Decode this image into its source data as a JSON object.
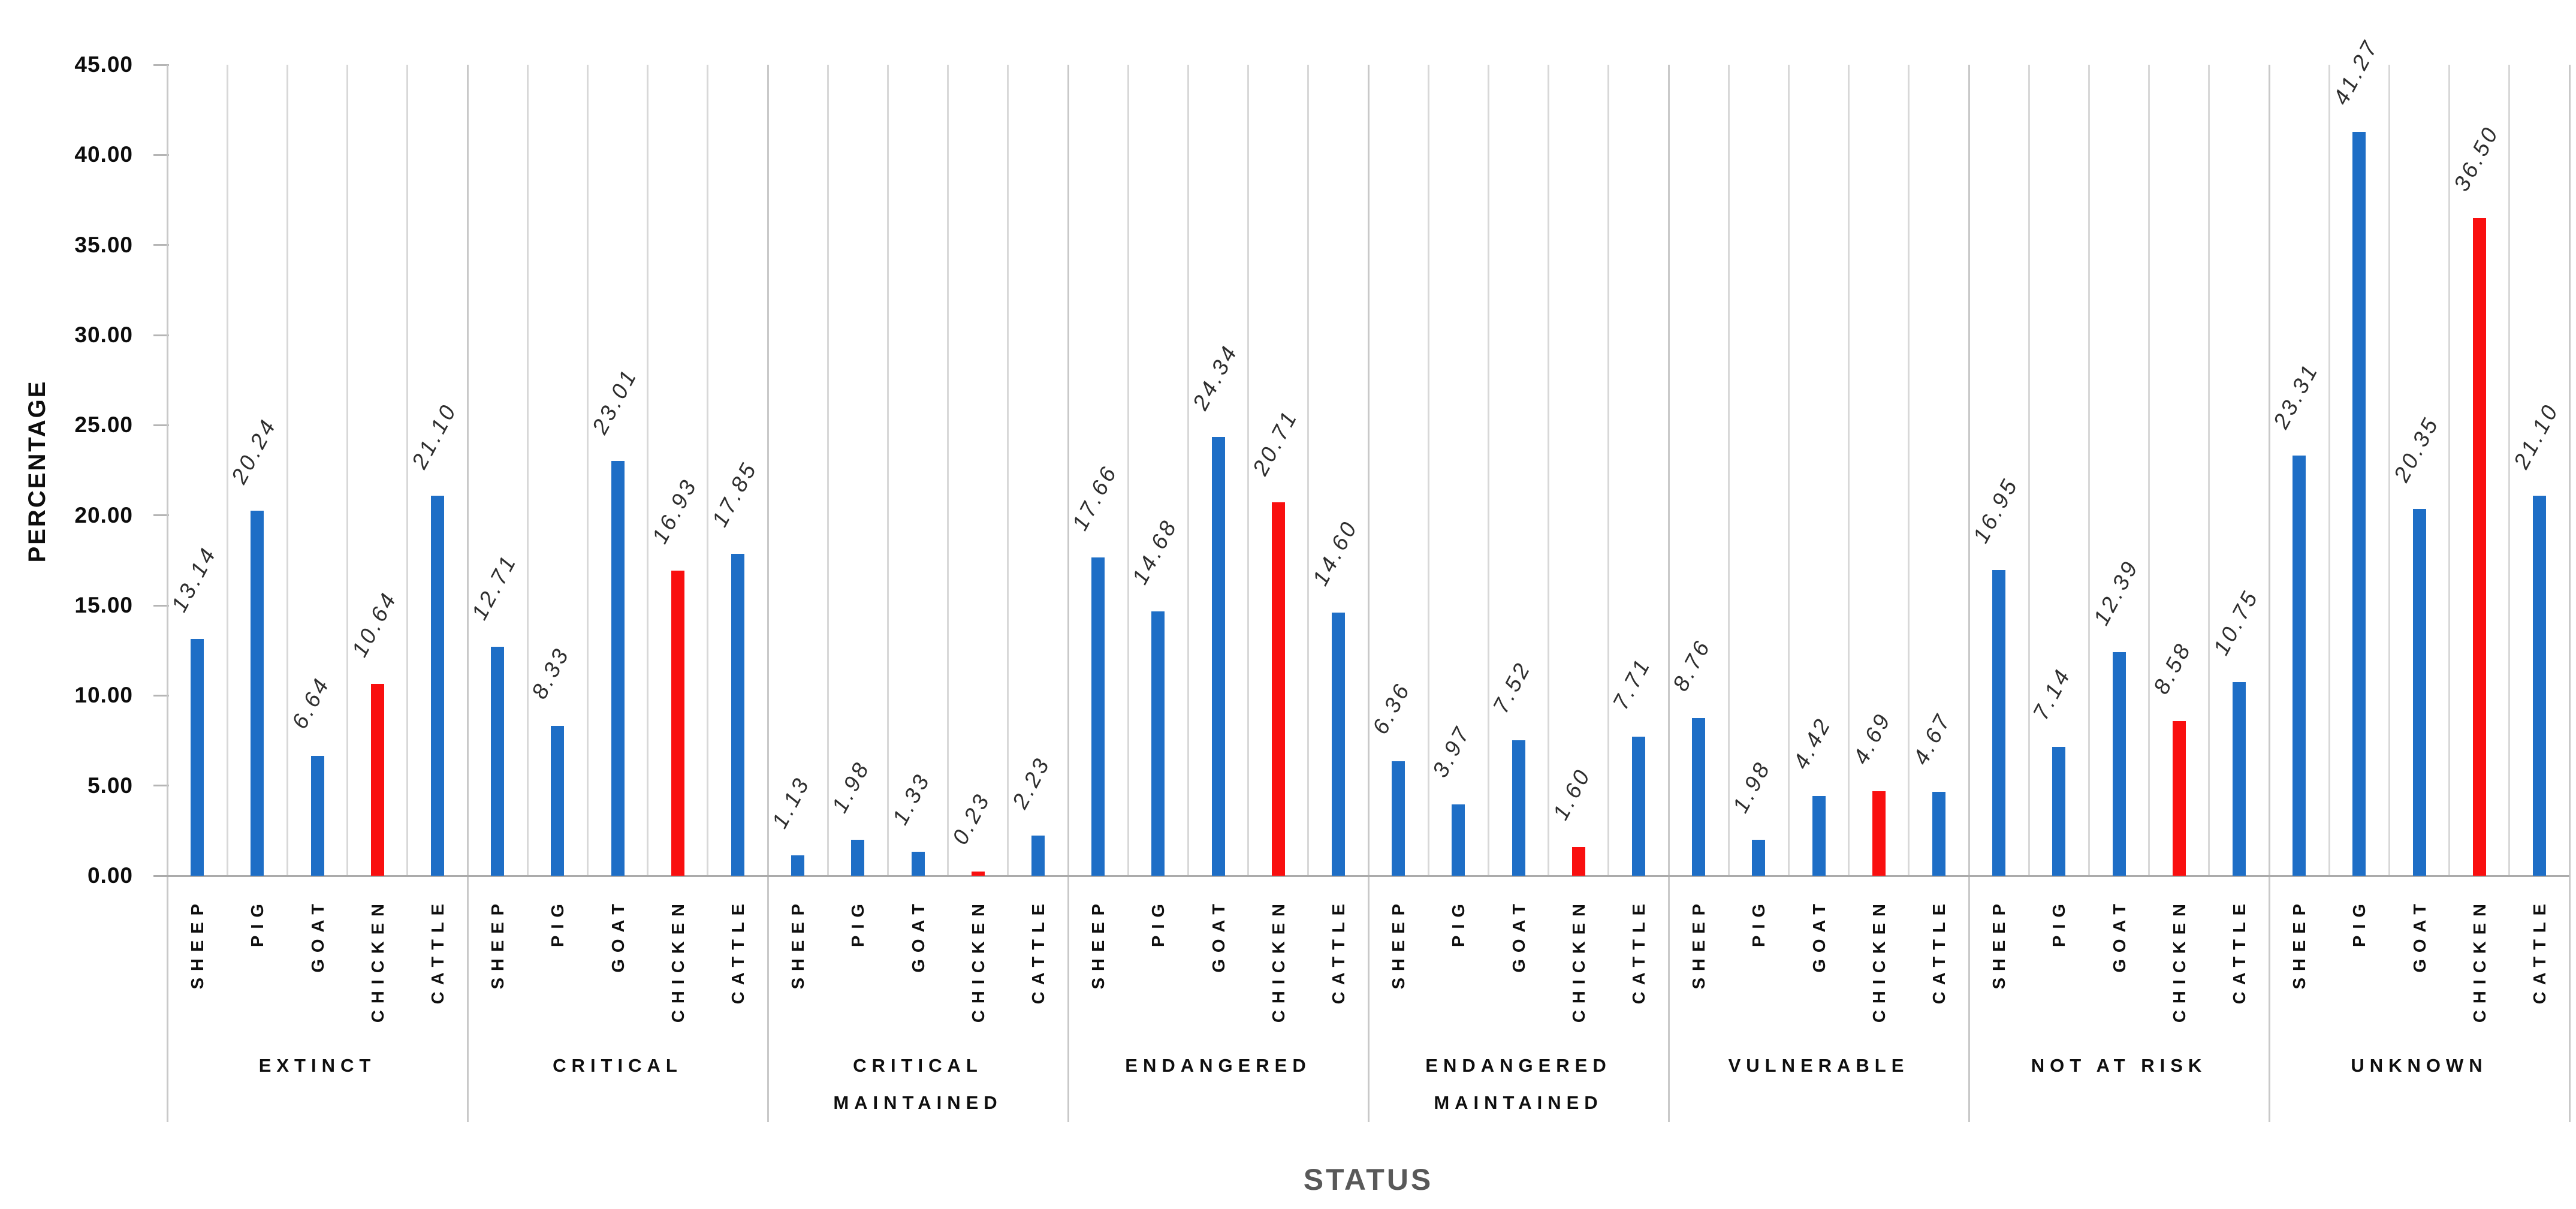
{
  "chart_data": {
    "type": "bar",
    "title": "",
    "xlabel": "STATUS",
    "ylabel": "PERCENTAGE",
    "ylim": [
      0,
      45
    ],
    "ytick_step": 5,
    "yticks": [
      "0.00",
      "5.00",
      "10.00",
      "15.00",
      "20.00",
      "25.00",
      "30.00",
      "35.00",
      "40.00",
      "45.00"
    ],
    "value_decimals": 2,
    "grid": "vertical-only",
    "legend": "none",
    "animals_per_group": [
      "SHEEP",
      "PIG",
      "GOAT",
      "CHICKEN",
      "CATTLE"
    ],
    "highlight_category": "CHICKEN",
    "colors": {
      "default_bar": "#1E6EC6",
      "highlight_bar": "#F90F0F",
      "column_gridline": "#D8D8D8",
      "group_separator": "#C9C9C9",
      "axis_line": "#ABABAB",
      "tick_mark": "#B5B5B5",
      "value_label_text": "#2E2E2E",
      "axis_text": "#0D0D0D",
      "xlabel_text": "#595959"
    },
    "groups": [
      {
        "label": "EXTINCT",
        "values": [
          13.14,
          20.24,
          6.64,
          10.64,
          21.1
        ]
      },
      {
        "label": "CRITICAL",
        "values": [
          12.71,
          8.33,
          23.01,
          16.93,
          17.85
        ]
      },
      {
        "label": "CRITICAL\nMAINTAINED",
        "values": [
          1.13,
          1.98,
          1.33,
          0.23,
          2.23
        ]
      },
      {
        "label": "ENDANGERED",
        "values": [
          17.66,
          14.68,
          24.34,
          20.71,
          14.6
        ]
      },
      {
        "label": "ENDANGERED\nMAINTAINED",
        "values": [
          6.36,
          3.97,
          7.52,
          1.6,
          7.71
        ]
      },
      {
        "label": "VULNERABLE",
        "values": [
          8.76,
          1.98,
          4.42,
          4.69,
          4.67
        ]
      },
      {
        "label": "NOT AT RISK",
        "values": [
          16.95,
          7.14,
          12.39,
          8.58,
          10.75
        ]
      },
      {
        "label": "UNKNOWN",
        "values": [
          23.31,
          41.27,
          20.35,
          36.5,
          21.1
        ]
      }
    ]
  }
}
